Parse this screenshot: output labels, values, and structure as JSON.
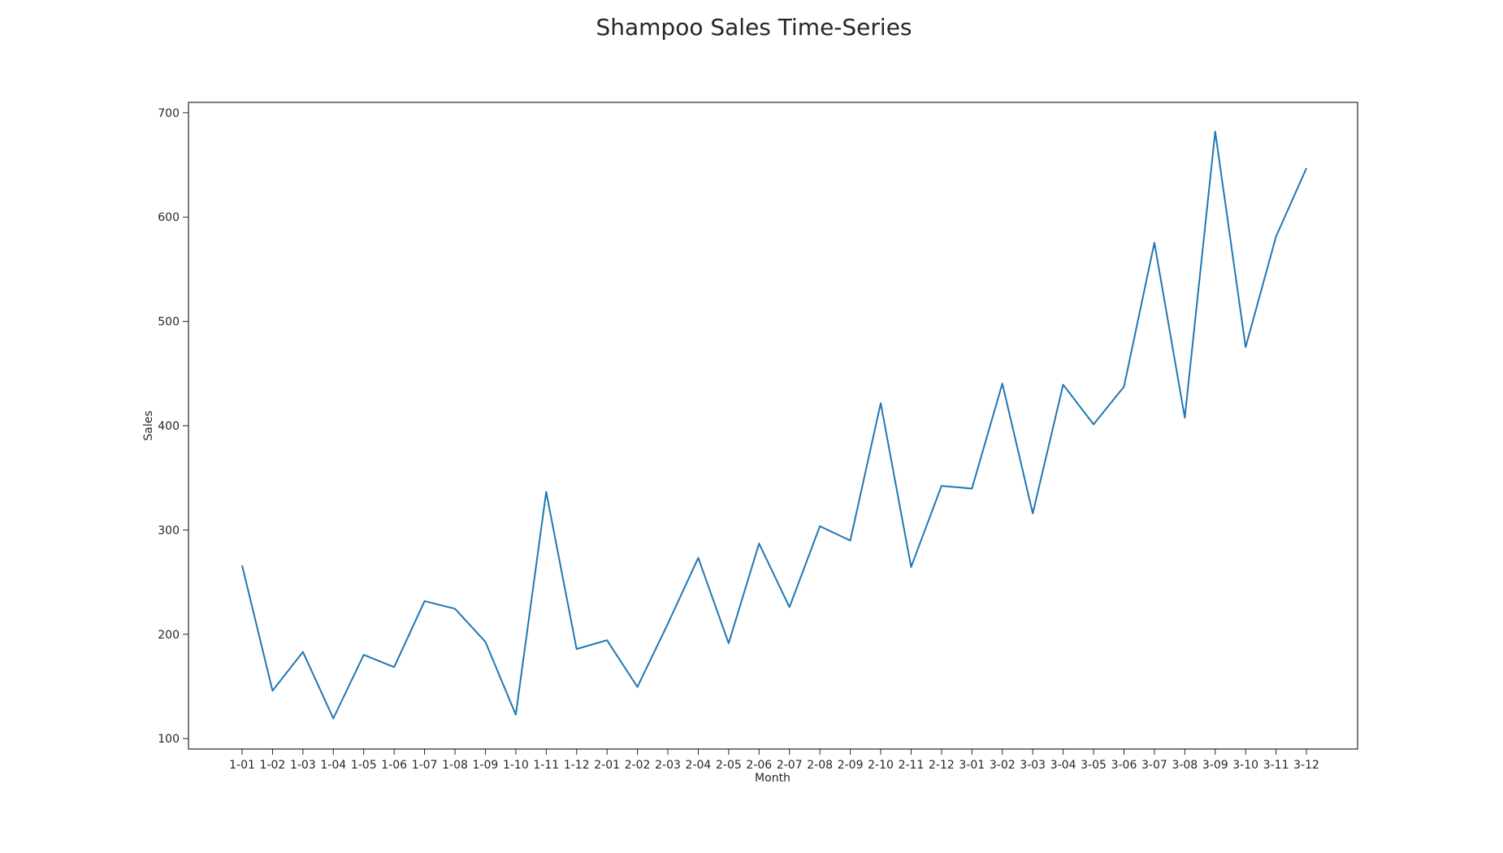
{
  "chart_data": {
    "type": "line",
    "title": "Shampoo Sales Time-Series",
    "xlabel": "Month",
    "ylabel": "Sales",
    "ylim": [
      90,
      710
    ],
    "yticks": [
      100,
      200,
      300,
      400,
      500,
      600,
      700
    ],
    "grid": false,
    "legend": "none",
    "line_color": "#1f77b4",
    "categories": [
      "1-01",
      "1-02",
      "1-03",
      "1-04",
      "1-05",
      "1-06",
      "1-07",
      "1-08",
      "1-09",
      "1-10",
      "1-11",
      "1-12",
      "2-01",
      "2-02",
      "2-03",
      "2-04",
      "2-05",
      "2-06",
      "2-07",
      "2-08",
      "2-09",
      "2-10",
      "2-11",
      "2-12",
      "3-01",
      "3-02",
      "3-03",
      "3-04",
      "3-05",
      "3-06",
      "3-07",
      "3-08",
      "3-09",
      "3-10",
      "3-11",
      "3-12"
    ],
    "series": [
      {
        "values": [
          266.0,
          145.9,
          183.1,
          119.3,
          180.3,
          168.5,
          231.8,
          224.5,
          192.8,
          122.9,
          336.5,
          185.9,
          194.3,
          149.5,
          210.1,
          273.3,
          191.4,
          287.0,
          226.0,
          303.6,
          289.9,
          421.6,
          264.5,
          342.3,
          339.7,
          440.4,
          315.9,
          439.3,
          401.3,
          437.4,
          575.5,
          407.6,
          682.0,
          475.3,
          581.3,
          646.9
        ]
      }
    ]
  }
}
